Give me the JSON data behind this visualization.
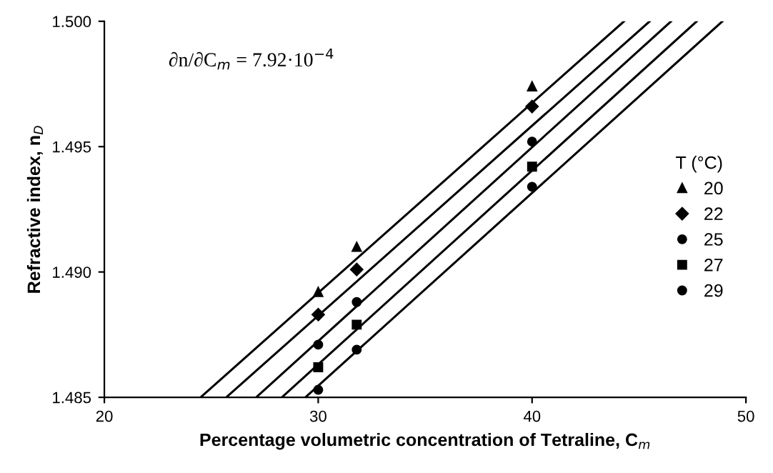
{
  "chart_data": {
    "type": "scatter",
    "xlabel": "Percentage volumetric concentration of Tetraline, C$_{m}$",
    "ylabel": "Refractive index, n$_{D}$",
    "legend_title": "T (°C)",
    "annotations": [
      "∂n/∂C$_{m}$ = 7.92·10$^{−4}$"
    ],
    "xlim": [
      20,
      50
    ],
    "xticks": [
      20,
      30,
      40,
      50
    ],
    "ylim": [
      1.485,
      1.5
    ],
    "yticks": [
      {
        "value": 1.485,
        "label": "1.485"
      },
      {
        "value": 1.49,
        "label": "1.490"
      },
      {
        "value": 1.495,
        "label": "1.495"
      },
      {
        "value": 1.5,
        "label": "1.500"
      }
    ],
    "grid": false,
    "legend": "right",
    "series": [
      {
        "name": "20",
        "color": "#000000",
        "marker": "triangle",
        "x": [
          30,
          31.8,
          40
        ],
        "values": [
          1.4892,
          1.491,
          1.4974
        ]
      },
      {
        "name": "22",
        "color": "#000000",
        "marker": "diamond",
        "x": [
          30,
          31.8,
          40
        ],
        "values": [
          1.4883,
          1.4901,
          1.4966
        ]
      },
      {
        "name": "25",
        "color": "#000000",
        "marker": "circle",
        "x": [
          30,
          31.8,
          40
        ],
        "values": [
          1.4871,
          1.4888,
          1.4952
        ]
      },
      {
        "name": "27",
        "color": "#000000",
        "marker": "square",
        "x": [
          30,
          31.8,
          40
        ],
        "values": [
          1.4862,
          1.4879,
          1.4942
        ]
      },
      {
        "name": "29",
        "color": "#000000",
        "marker": "circle",
        "x": [
          30,
          31.8,
          40
        ],
        "values": [
          1.4853,
          1.4869,
          1.4934
        ]
      },
      {
        "type": "line",
        "color": "#000000",
        "x": [
          24.5,
          44.3
        ],
        "values": [
          1.485,
          1.5
        ]
      },
      {
        "type": "line",
        "color": "#000000",
        "x": [
          25.7,
          45.5
        ],
        "values": [
          1.485,
          1.5
        ]
      },
      {
        "type": "line",
        "color": "#000000",
        "x": [
          27.1,
          46.5
        ],
        "values": [
          1.485,
          1.5
        ]
      },
      {
        "type": "line",
        "color": "#000000",
        "x": [
          28.3,
          47.7
        ],
        "values": [
          1.485,
          1.5
        ]
      },
      {
        "type": "line",
        "color": "#000000",
        "x": [
          29.4,
          48.9
        ],
        "values": [
          1.485,
          1.5
        ]
      }
    ]
  }
}
